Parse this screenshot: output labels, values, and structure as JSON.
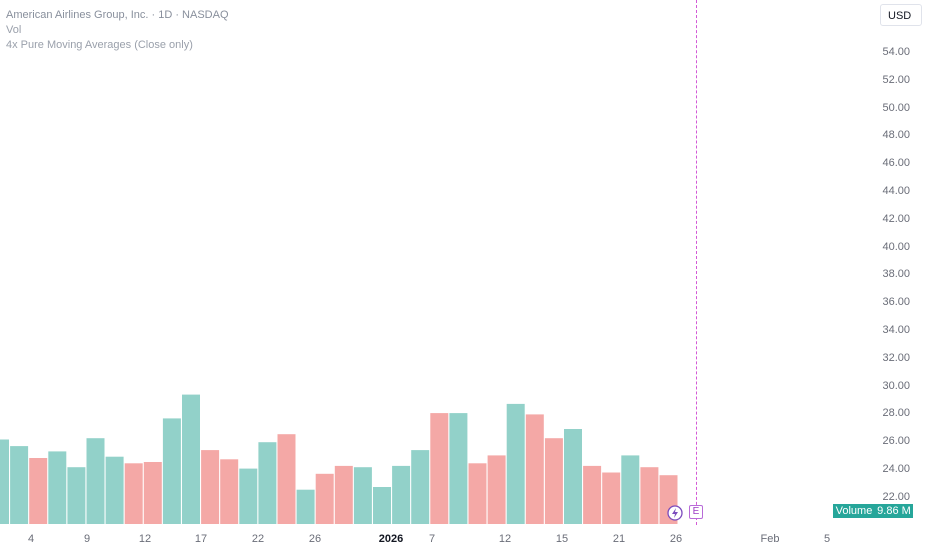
{
  "legend": {
    "title": "American Airlines Group, Inc. · 1D · NASDAQ",
    "volume_label": "Vol",
    "indicator": "4x Pure Moving Averages (Close only)"
  },
  "currency": "USD",
  "price_scale": [
    "54.00",
    "52.00",
    "50.00",
    "48.00",
    "46.00",
    "44.00",
    "42.00",
    "40.00",
    "38.00",
    "36.00",
    "34.00",
    "32.00",
    "30.00",
    "28.00",
    "26.00",
    "24.00",
    "22.00"
  ],
  "volume_badge": {
    "label": "Volume",
    "value": "9.86 M"
  },
  "time_axis": [
    "4",
    "9",
    "12",
    "17",
    "22",
    "26",
    "2026",
    "7",
    "12",
    "15",
    "21",
    "26",
    "Feb",
    "5"
  ],
  "event_marker": "E",
  "colors": {
    "up": "#92d1c9",
    "down": "#f4a8a6",
    "accent": "#26a69a",
    "event": "#d35ad6"
  },
  "chart_data": {
    "type": "bar",
    "series": [
      {
        "values": [
          {
            "v": 0.64,
            "d": "up"
          },
          {
            "v": 0.59,
            "d": "up"
          },
          {
            "v": 0.5,
            "d": "down"
          },
          {
            "v": 0.55,
            "d": "up"
          },
          {
            "v": 0.43,
            "d": "up"
          },
          {
            "v": 0.65,
            "d": "up"
          },
          {
            "v": 0.51,
            "d": "up"
          },
          {
            "v": 0.46,
            "d": "down"
          },
          {
            "v": 0.47,
            "d": "down"
          },
          {
            "v": 0.8,
            "d": "up"
          },
          {
            "v": 0.98,
            "d": "up"
          },
          {
            "v": 0.56,
            "d": "down"
          },
          {
            "v": 0.49,
            "d": "down"
          },
          {
            "v": 0.42,
            "d": "up"
          },
          {
            "v": 0.62,
            "d": "up"
          },
          {
            "v": 0.68,
            "d": "down"
          },
          {
            "v": 0.26,
            "d": "up"
          },
          {
            "v": 0.38,
            "d": "down"
          },
          {
            "v": 0.44,
            "d": "down"
          },
          {
            "v": 0.43,
            "d": "up"
          },
          {
            "v": 0.28,
            "d": "up"
          },
          {
            "v": 0.44,
            "d": "up"
          },
          {
            "v": 0.56,
            "d": "up"
          },
          {
            "v": 0.84,
            "d": "down"
          },
          {
            "v": 0.84,
            "d": "up"
          },
          {
            "v": 0.46,
            "d": "down"
          },
          {
            "v": 0.52,
            "d": "down"
          },
          {
            "v": 0.91,
            "d": "up"
          },
          {
            "v": 0.83,
            "d": "down"
          },
          {
            "v": 0.65,
            "d": "down"
          },
          {
            "v": 0.72,
            "d": "up"
          },
          {
            "v": 0.44,
            "d": "down"
          },
          {
            "v": 0.39,
            "d": "down"
          },
          {
            "v": 0.52,
            "d": "up"
          },
          {
            "v": 0.43,
            "d": "down"
          },
          {
            "v": 0.37,
            "d": "down"
          }
        ]
      }
    ]
  }
}
